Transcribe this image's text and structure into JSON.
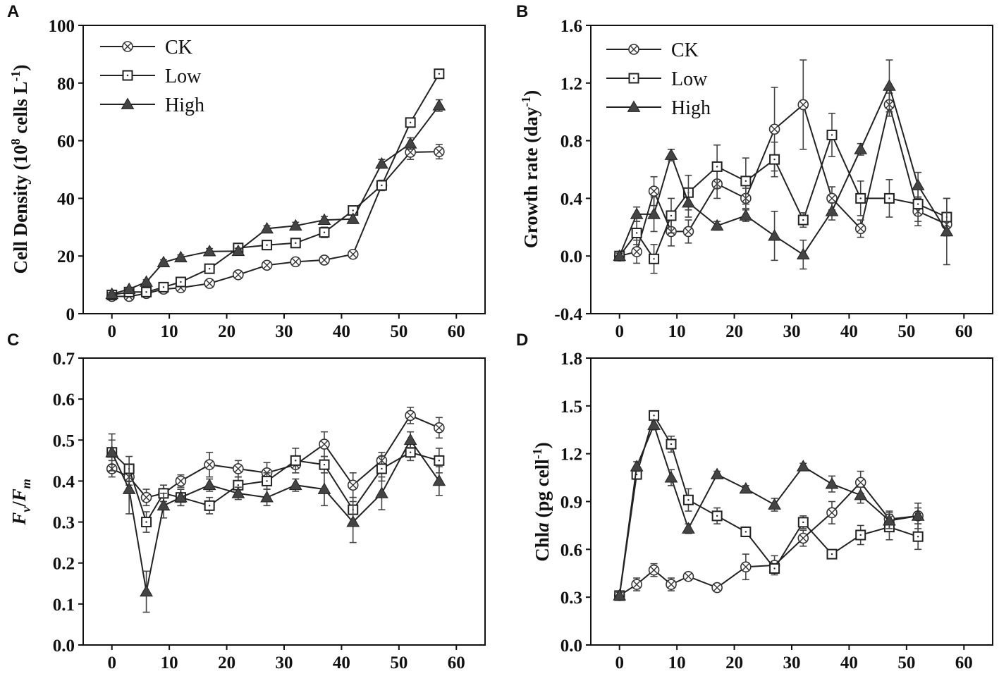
{
  "chart_data": [
    {
      "panel": "A",
      "type": "line",
      "ylabel": "Cell Density (10^8 cells L^-1)",
      "ylabel_parts": {
        "pre": "Cell Density (10",
        "sup1": "8",
        "mid": " cells L",
        "sup2": "-1",
        "post": ")"
      },
      "xlim": [
        -5,
        65
      ],
      "ylim": [
        0,
        100
      ],
      "xticks": [
        "0",
        "10",
        "20",
        "30",
        "40",
        "50",
        "60"
      ],
      "xtick_values": [
        0,
        10,
        20,
        30,
        40,
        50,
        60
      ],
      "yticks": [
        "0",
        "20",
        "40",
        "60",
        "80",
        "100"
      ],
      "ytick_values": [
        0,
        20,
        40,
        60,
        80,
        100
      ],
      "legend": true,
      "series": [
        {
          "name": "CK",
          "marker": "circlex",
          "x": [
            0,
            3,
            6,
            9,
            12,
            17,
            22,
            27,
            32,
            37,
            42,
            47,
            52,
            57
          ],
          "y": [
            6,
            6,
            7,
            8.5,
            9,
            10.5,
            13.5,
            16.8,
            18,
            18.6,
            20.6,
            44.5,
            56,
            56.2
          ],
          "err": [
            0.6,
            0.6,
            0.6,
            0.6,
            0.6,
            0.7,
            0.9,
            1,
            1,
            1,
            1,
            1.5,
            2.5,
            2.5
          ]
        },
        {
          "name": "Low",
          "marker": "square",
          "x": [
            0,
            3,
            6,
            9,
            12,
            17,
            22,
            27,
            32,
            37,
            42,
            47,
            52,
            57
          ],
          "y": [
            6.5,
            7.5,
            7.5,
            9.2,
            11,
            15.6,
            22.8,
            23.8,
            24.5,
            28.2,
            35.8,
            44.5,
            66.3,
            83.2
          ],
          "err": [
            0.6,
            0.6,
            0.6,
            0.8,
            0.9,
            1.2,
            1.5,
            1.5,
            1.5,
            1.8,
            1.5,
            1.8,
            1.5,
            1.2
          ]
        },
        {
          "name": "High",
          "marker": "triangle",
          "x": [
            0,
            3,
            6,
            9,
            12,
            17,
            22,
            27,
            32,
            37,
            42,
            47,
            52,
            57
          ],
          "y": [
            6.8,
            8.5,
            11,
            17.8,
            19.5,
            21.6,
            21.7,
            29.5,
            30.5,
            32.5,
            32.8,
            52,
            59,
            72.2
          ],
          "err": [
            0.6,
            0.6,
            0.8,
            0.9,
            0.9,
            1,
            1,
            1,
            1.2,
            1.2,
            1.5,
            1.5,
            2,
            2
          ]
        }
      ]
    },
    {
      "panel": "B",
      "type": "line",
      "ylabel": "Growth rate (day^-1)",
      "ylabel_parts": {
        "pre": "Growth rate (day",
        "sup1": "-1",
        "post": ")"
      },
      "xlim": [
        -5,
        65
      ],
      "ylim": [
        -0.4,
        1.6
      ],
      "xticks": [
        "0",
        "10",
        "20",
        "30",
        "40",
        "50",
        "60"
      ],
      "xtick_values": [
        0,
        10,
        20,
        30,
        40,
        50,
        60
      ],
      "yticks": [
        "-0.4",
        "0.0",
        "0.4",
        "0.8",
        "1.2",
        "1.6"
      ],
      "ytick_values": [
        -0.4,
        0,
        0.4,
        0.8,
        1.2,
        1.6
      ],
      "legend": true,
      "series": [
        {
          "name": "CK",
          "marker": "circlex",
          "x": [
            0,
            3,
            6,
            9,
            12,
            17,
            22,
            27,
            32,
            37,
            42,
            47,
            52,
            57
          ],
          "y": [
            0,
            0.03,
            0.45,
            0.17,
            0.17,
            0.5,
            0.4,
            0.88,
            1.05,
            0.4,
            0.19,
            1.05,
            0.31,
            0.22
          ],
          "err": [
            0.02,
            0.08,
            0.1,
            0.1,
            0.08,
            0.1,
            0.07,
            0.29,
            0.31,
            0.08,
            0.06,
            0.08,
            0.1,
            0.06
          ]
        },
        {
          "name": "Low",
          "marker": "square",
          "x": [
            0,
            3,
            6,
            9,
            12,
            17,
            22,
            27,
            32,
            37,
            42,
            47,
            52,
            57
          ],
          "y": [
            0,
            0.16,
            -0.02,
            0.28,
            0.44,
            0.62,
            0.52,
            0.67,
            0.25,
            0.84,
            0.4,
            0.4,
            0.36,
            0.27
          ],
          "err": [
            0.02,
            0.08,
            0.1,
            0.12,
            0.12,
            0.15,
            0.16,
            0.12,
            0.05,
            0.15,
            0.12,
            0.13,
            0.12,
            0.13
          ]
        },
        {
          "name": "High",
          "marker": "triangle",
          "x": [
            0,
            3,
            6,
            9,
            12,
            17,
            22,
            27,
            32,
            37,
            42,
            47,
            52,
            57
          ],
          "y": [
            0,
            0.29,
            0.29,
            0.7,
            0.37,
            0.21,
            0.28,
            0.14,
            0.01,
            0.31,
            0.74,
            1.18,
            0.49,
            0.17
          ],
          "err": [
            0.02,
            0.05,
            0.12,
            0.04,
            0.1,
            0.03,
            0.04,
            0.17,
            0.1,
            0.06,
            0.04,
            0.18,
            0.09,
            0.23
          ]
        }
      ]
    },
    {
      "panel": "C",
      "type": "line",
      "ylabel": "Fv/Fm",
      "ylabel_parts": {
        "f1": "F",
        "s1": "v",
        "slash": "/",
        "f2": "F",
        "s2": "m"
      },
      "xlim": [
        -5,
        65
      ],
      "ylim": [
        0,
        0.7
      ],
      "xticks": [
        "0",
        "10",
        "20",
        "30",
        "40",
        "50",
        "60"
      ],
      "xtick_values": [
        0,
        10,
        20,
        30,
        40,
        50,
        60
      ],
      "yticks": [
        "0.0",
        "0.1",
        "0.2",
        "0.3",
        "0.4",
        "0.5",
        "0.6",
        "0.7"
      ],
      "ytick_values": [
        0,
        0.1,
        0.2,
        0.3,
        0.4,
        0.5,
        0.6,
        0.7
      ],
      "legend": false,
      "series": [
        {
          "name": "CK",
          "marker": "circlex",
          "x": [
            0,
            3,
            6,
            9,
            12,
            17,
            22,
            27,
            32,
            37,
            42,
            47,
            52,
            57
          ],
          "y": [
            0.43,
            0.41,
            0.36,
            0.37,
            0.4,
            0.44,
            0.43,
            0.42,
            0.44,
            0.49,
            0.39,
            0.45,
            0.56,
            0.53
          ],
          "err": [
            0.02,
            0.02,
            0.02,
            0.02,
            0.015,
            0.03,
            0.02,
            0.025,
            0.02,
            0.03,
            0.03,
            0.02,
            0.02,
            0.025
          ]
        },
        {
          "name": "Low",
          "marker": "square",
          "x": [
            0,
            3,
            6,
            9,
            12,
            17,
            22,
            27,
            32,
            37,
            42,
            47,
            52,
            57
          ],
          "y": [
            0.47,
            0.43,
            0.3,
            0.37,
            0.36,
            0.34,
            0.39,
            0.4,
            0.45,
            0.44,
            0.33,
            0.43,
            0.47,
            0.45
          ],
          "err": [
            0.045,
            0.03,
            0.025,
            0.02,
            0.02,
            0.02,
            0.02,
            0.02,
            0.03,
            0.02,
            0.03,
            0.03,
            0.02,
            0.03
          ]
        },
        {
          "name": "High",
          "marker": "triangle",
          "x": [
            0,
            3,
            6,
            9,
            12,
            17,
            22,
            27,
            32,
            37,
            42,
            47,
            52,
            57
          ],
          "y": [
            0.47,
            0.38,
            0.13,
            0.34,
            0.36,
            0.39,
            0.37,
            0.36,
            0.39,
            0.38,
            0.3,
            0.37,
            0.5,
            0.4
          ],
          "err": [
            0.03,
            0.06,
            0.05,
            0.03,
            0.02,
            0.015,
            0.015,
            0.02,
            0.015,
            0.04,
            0.05,
            0.04,
            0.02,
            0.035
          ]
        }
      ]
    },
    {
      "panel": "D",
      "type": "line",
      "ylabel": "Chla (pg cell^-1)",
      "ylabel_parts": {
        "pre": "Chl",
        "ital": "a",
        "mid": " (pg cell",
        "sup1": "-1",
        "post": ")"
      },
      "xlim": [
        -5,
        65
      ],
      "ylim": [
        0,
        1.8
      ],
      "xticks": [
        "0",
        "10",
        "20",
        "30",
        "40",
        "50",
        "60"
      ],
      "xtick_values": [
        0,
        10,
        20,
        30,
        40,
        50,
        60
      ],
      "yticks": [
        "0.0",
        "0.3",
        "0.6",
        "0.9",
        "1.2",
        "1.5",
        "1.8"
      ],
      "ytick_values": [
        0,
        0.3,
        0.6,
        0.9,
        1.2,
        1.5,
        1.8
      ],
      "legend": false,
      "series": [
        {
          "name": "CK",
          "marker": "circlex",
          "x": [
            0,
            3,
            6,
            9,
            12,
            17,
            22,
            27,
            32,
            37,
            42,
            47,
            52
          ],
          "y": [
            0.31,
            0.38,
            0.47,
            0.38,
            0.43,
            0.36,
            0.49,
            0.5,
            0.67,
            0.83,
            1.02,
            0.79,
            0.81
          ],
          "err": [
            0.02,
            0.04,
            0.04,
            0.04,
            0.02,
            0.02,
            0.08,
            0.06,
            0.05,
            0.07,
            0.07,
            0.05,
            0.08
          ]
        },
        {
          "name": "Low",
          "marker": "square",
          "x": [
            0,
            3,
            6,
            9,
            12,
            17,
            22,
            27,
            32,
            37,
            42,
            47,
            52
          ],
          "y": [
            0.31,
            1.07,
            1.44,
            1.26,
            0.91,
            0.81,
            0.71,
            0.48,
            0.77,
            0.57,
            0.69,
            0.74,
            0.68
          ],
          "err": [
            0.02,
            0.03,
            0.02,
            0.05,
            0.07,
            0.05,
            0.03,
            0.03,
            0.04,
            0.02,
            0.06,
            0.08,
            0.08
          ]
        },
        {
          "name": "High",
          "marker": "triangle",
          "x": [
            0,
            3,
            6,
            9,
            12,
            17,
            22,
            27,
            32,
            37,
            42,
            47,
            52
          ],
          "y": [
            0.31,
            1.12,
            1.38,
            1.05,
            0.73,
            1.07,
            0.98,
            0.88,
            1.12,
            1.01,
            0.94,
            0.78,
            0.81
          ],
          "err": [
            0.02,
            0.03,
            0.03,
            0.05,
            0.03,
            0.02,
            0.02,
            0.04,
            0.02,
            0.05,
            0.05,
            0.05,
            0.05
          ]
        }
      ]
    }
  ]
}
